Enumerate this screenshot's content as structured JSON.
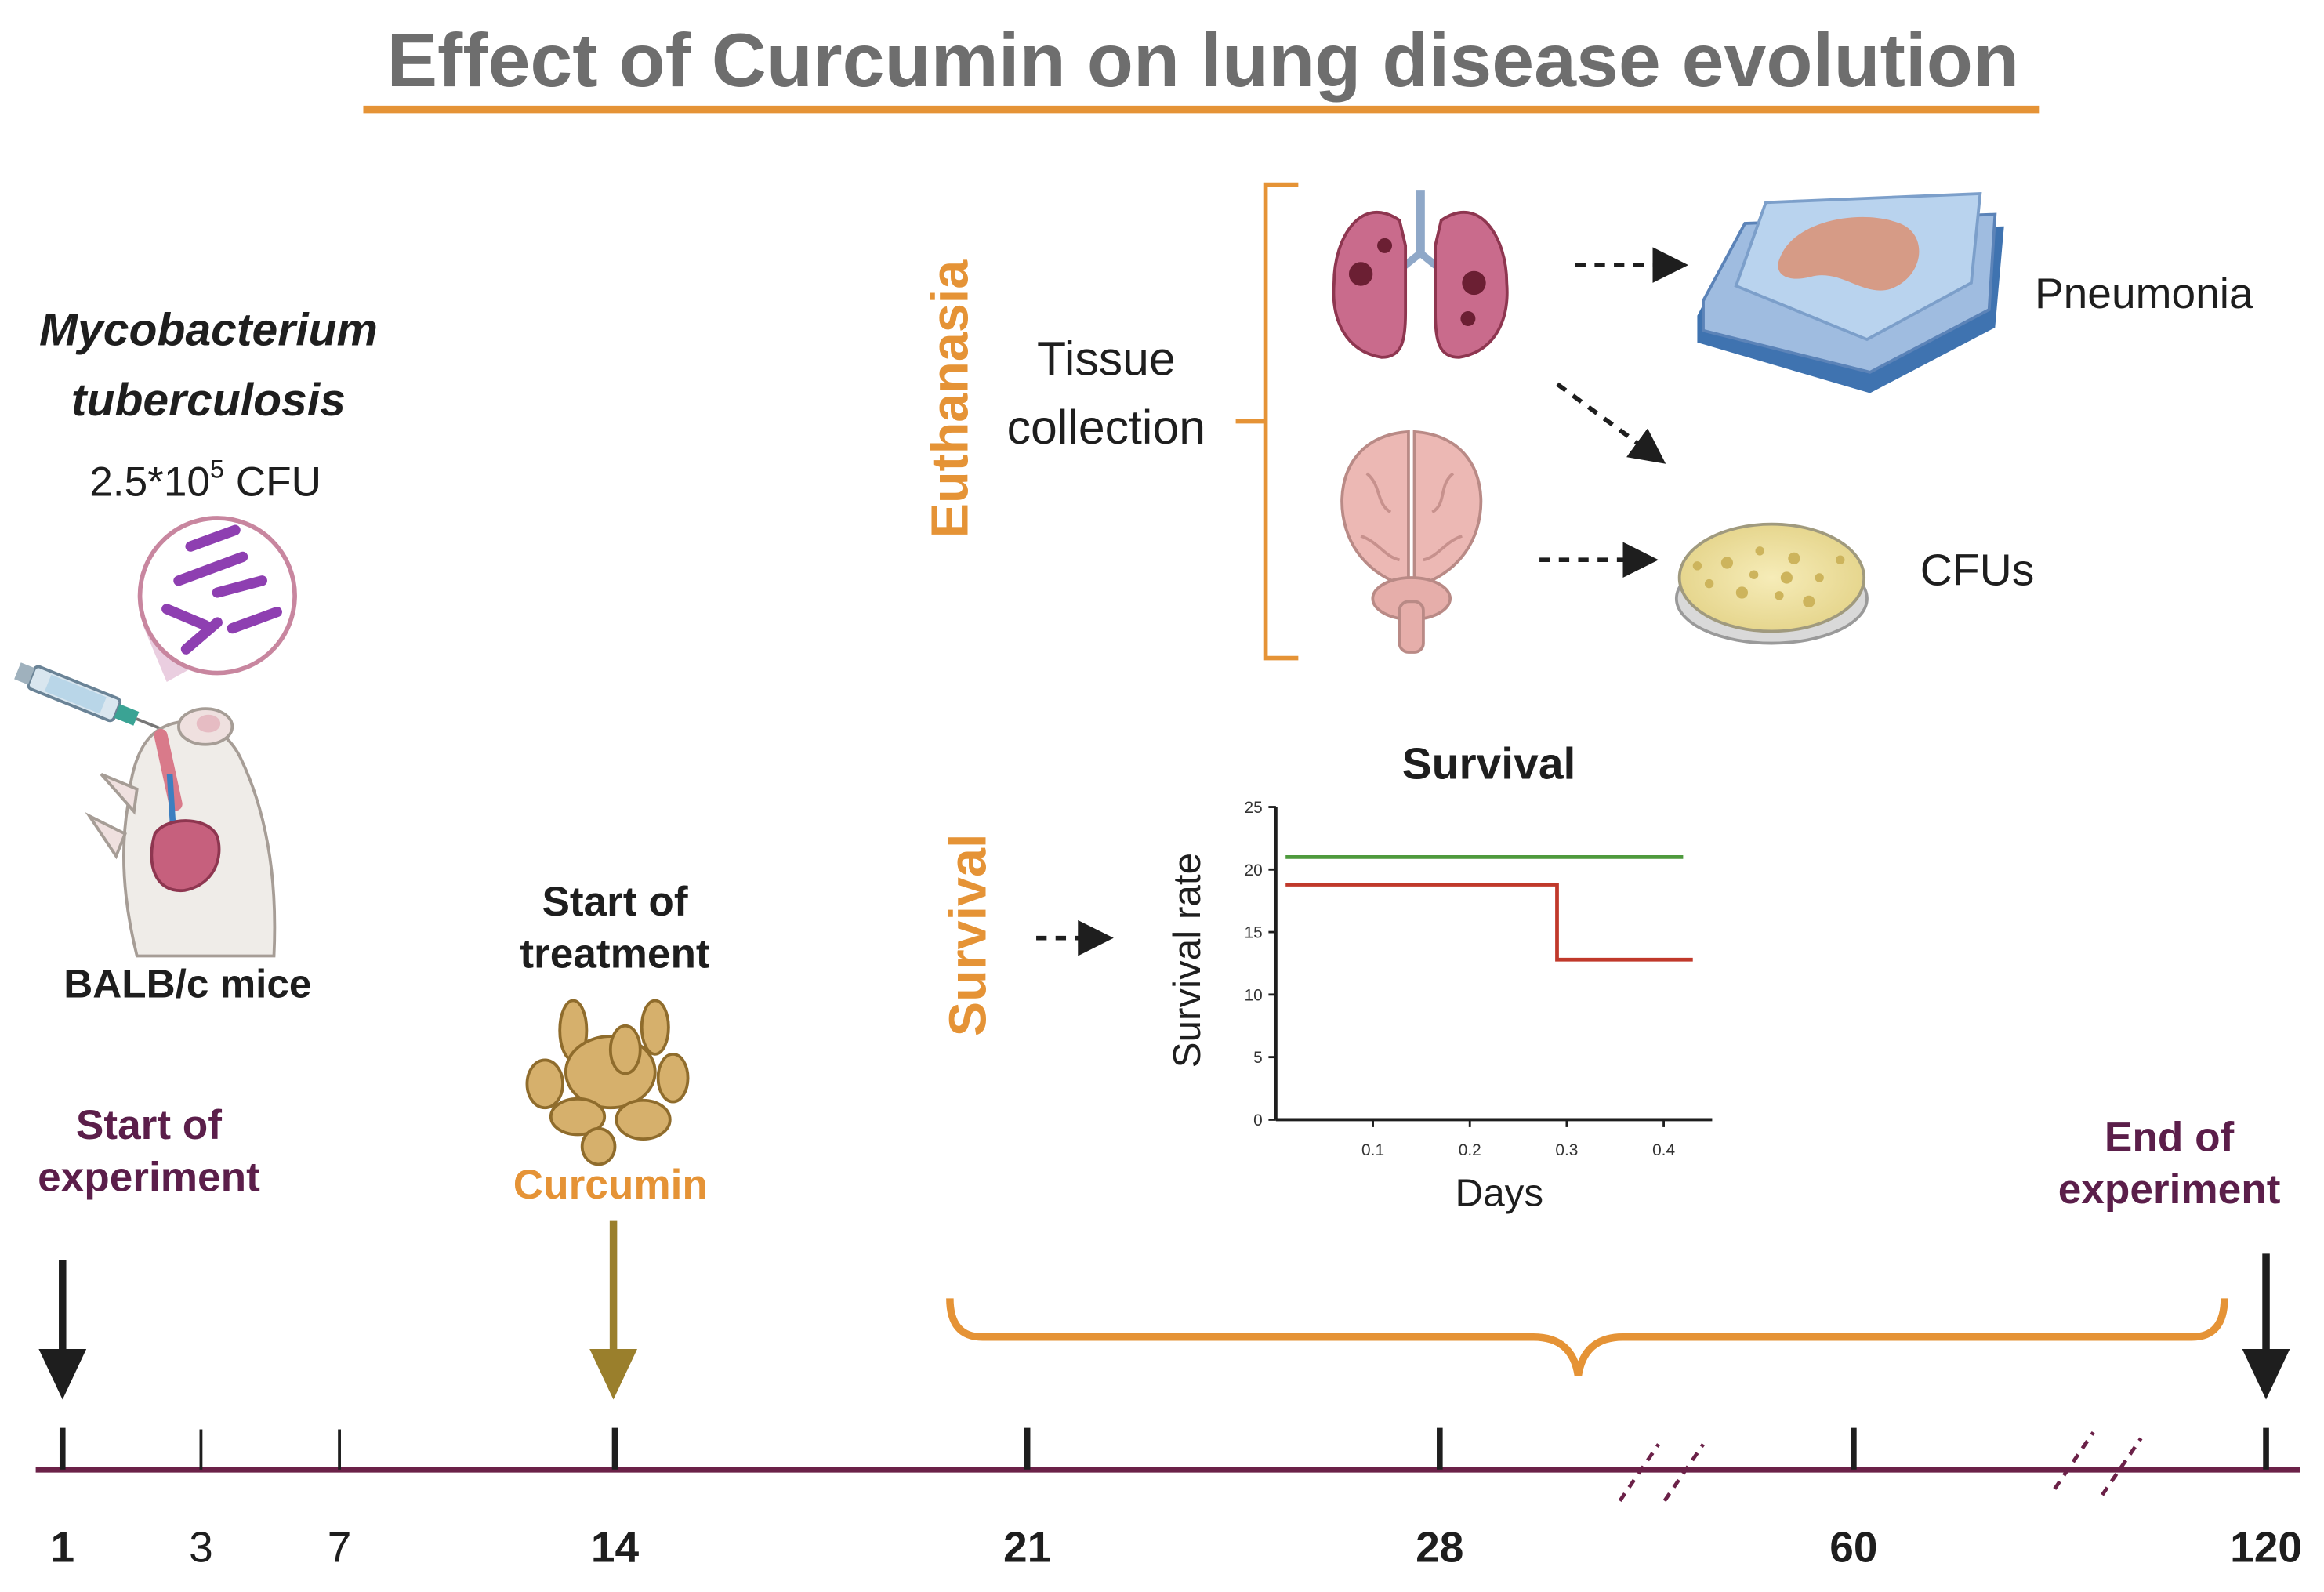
{
  "title": "Effect of Curcumin on lung disease evolution",
  "infection": {
    "organism_line1": "Mycobacterium",
    "organism_line2": "tuberculosis",
    "dose_prefix": "2.5*10",
    "dose_exp": "5",
    "dose_unit": " CFU",
    "mouse_label": "BALB/c mice"
  },
  "treatment": {
    "label_line1": "Start of",
    "label_line2": "treatment",
    "drug": "Curcumin"
  },
  "euthanasia": {
    "side_label": "Euthanasia",
    "tissue_line1": "Tissue",
    "tissue_line2": "collection",
    "outcome_histology": "Pneumonia",
    "outcome_culture": "CFUs"
  },
  "survival": {
    "side_label": "Survival"
  },
  "timeline": {
    "start_line1": "Start of",
    "start_line2": "experiment",
    "end_line1": "End of",
    "end_line2": "experiment",
    "ticks": [
      {
        "label": "1",
        "major": true
      },
      {
        "label": "3",
        "major": false
      },
      {
        "label": "7",
        "major": false
      },
      {
        "label": "14",
        "major": true
      },
      {
        "label": "21",
        "major": true
      },
      {
        "label": "28",
        "major": true
      },
      {
        "label": "60",
        "major": true
      },
      {
        "label": "120",
        "major": true
      }
    ]
  },
  "colors": {
    "title": "#6e6e6e",
    "accent_orange": "#e59336",
    "plum": "#5b1e4a",
    "arrow_olive": "#9a7f2c",
    "survival_green": "#4e9a3d",
    "survival_red": "#c0392b"
  },
  "chart_data": {
    "type": "line",
    "title": "Survival",
    "xlabel": "Days",
    "ylabel": "Survival rate",
    "xticks": [
      "0.1",
      "0.2",
      "0.3",
      "0.4"
    ],
    "yticks": [
      "0",
      "5",
      "10",
      "15",
      "20",
      "25"
    ],
    "xlim": [
      0.0,
      0.45
    ],
    "ylim": [
      0,
      25
    ],
    "series": [
      {
        "name": "green",
        "color": "#4e9a3d",
        "x": [
          0.01,
          0.42
        ],
        "y": [
          21,
          21
        ]
      },
      {
        "name": "red",
        "color": "#c0392b",
        "x": [
          0.01,
          0.29,
          0.29,
          0.43
        ],
        "y": [
          18.8,
          18.8,
          12.8,
          12.8
        ]
      }
    ]
  }
}
